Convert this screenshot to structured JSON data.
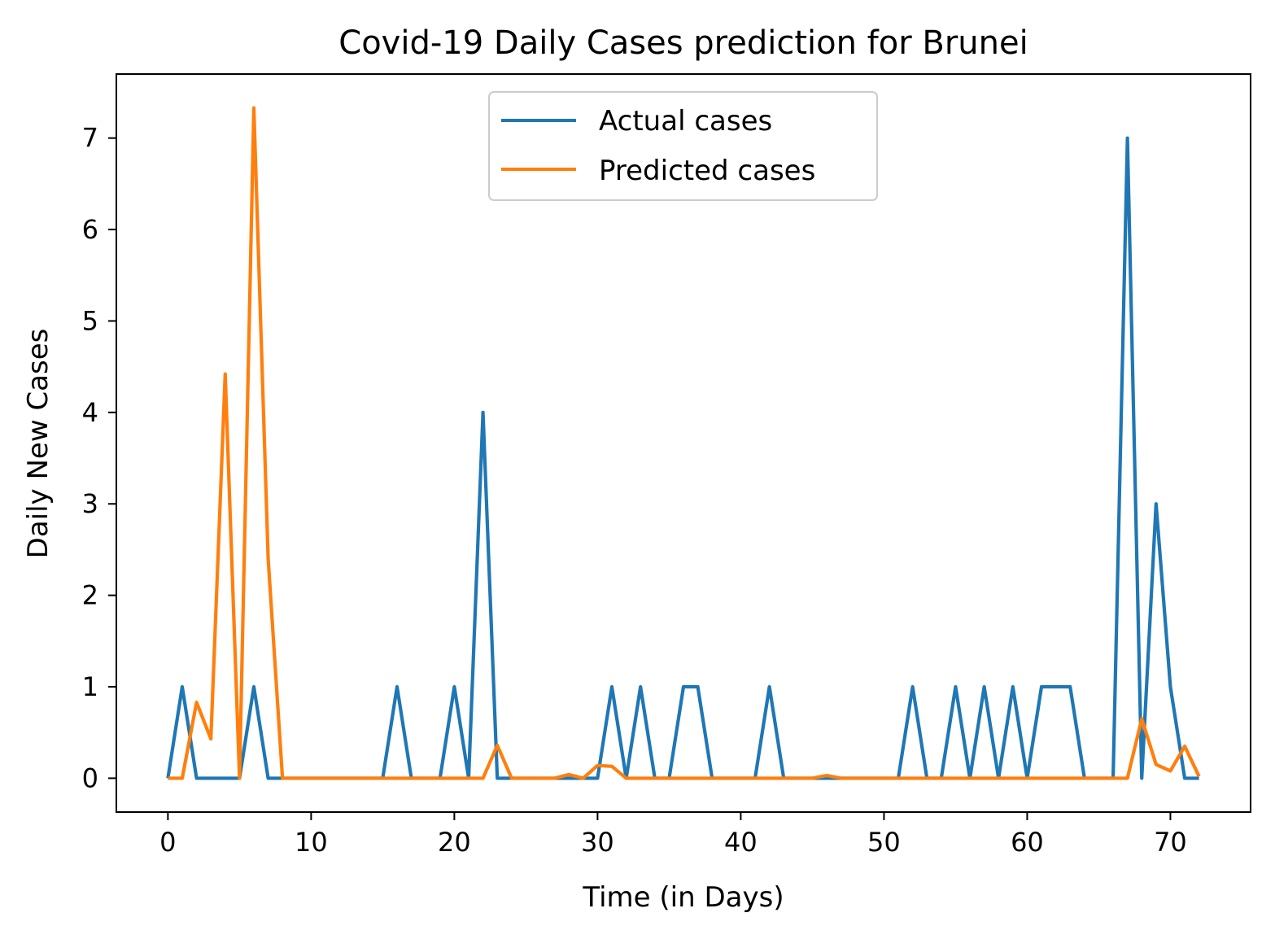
{
  "chart_data": {
    "type": "line",
    "title": "Covid-19 Daily Cases prediction for Brunei",
    "xlabel": "Time (in Days)",
    "ylabel": "Daily New Cases",
    "xlim": [
      -3.6,
      75.6
    ],
    "ylim": [
      -0.37,
      7.7
    ],
    "x_ticks": [
      0,
      10,
      20,
      30,
      40,
      50,
      60,
      70
    ],
    "y_ticks": [
      0,
      1,
      2,
      3,
      4,
      5,
      6,
      7
    ],
    "grid": false,
    "legend_position": "upper-center",
    "series": [
      {
        "name": "Actual cases",
        "color": "#1f77b4",
        "values": [
          0,
          1,
          0,
          0,
          0,
          0,
          1,
          0,
          0,
          0,
          0,
          0,
          0,
          0,
          0,
          0,
          1,
          0,
          0,
          0,
          1,
          0,
          4,
          0,
          0,
          0,
          0,
          0,
          0,
          0,
          0,
          1,
          0,
          1,
          0,
          0,
          1,
          1,
          0,
          0,
          0,
          0,
          1,
          0,
          0,
          0,
          0,
          0,
          0,
          0,
          0,
          0,
          1,
          0,
          0,
          1,
          0,
          1,
          0,
          1,
          0,
          1,
          1,
          1,
          0,
          0,
          0,
          7,
          0,
          3,
          1,
          0,
          0
        ]
      },
      {
        "name": "Predicted cases",
        "color": "#ff7f0e",
        "values": [
          0,
          0,
          0.83,
          0.43,
          4.42,
          0,
          7.33,
          2.4,
          0,
          0,
          0,
          0,
          0,
          0,
          0,
          0,
          0,
          0,
          0,
          0,
          0,
          0,
          0,
          0.36,
          0,
          0,
          0,
          0,
          0.04,
          0,
          0.14,
          0.13,
          0,
          0,
          0,
          0,
          0,
          0,
          0,
          0,
          0,
          0,
          0,
          0,
          0,
          0,
          0.03,
          0,
          0,
          0,
          0,
          0,
          0,
          0,
          0,
          0,
          0,
          0,
          0,
          0,
          0,
          0,
          0,
          0,
          0,
          0,
          0,
          0,
          0.65,
          0.15,
          0.08,
          0.35,
          0.02
        ]
      }
    ]
  }
}
